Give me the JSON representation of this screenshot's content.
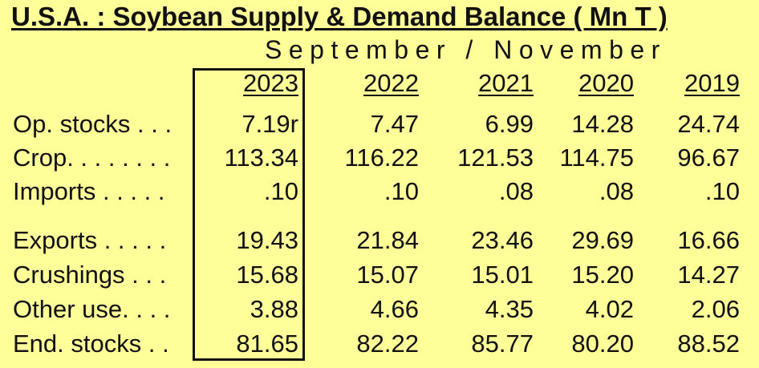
{
  "chart_data": {
    "type": "table",
    "title": "U.S.A. :  Soybean Supply & Demand Balance  ( Mn T )",
    "subtitle": "September / November",
    "columns": [
      "2023",
      "2022",
      "2021",
      "2020",
      "2019"
    ],
    "rows": [
      {
        "label": "Op. stocks . . .",
        "values": [
          "7.19r",
          "7.47",
          "6.99",
          "14.28",
          "24.74"
        ]
      },
      {
        "label": "Crop. . . . . . . .",
        "values": [
          "113.34",
          "116.22",
          "121.53",
          "114.75",
          "96.67"
        ]
      },
      {
        "label": "Imports  . . . . .",
        "values": [
          ".10",
          ".10",
          ".08",
          ".08",
          ".10"
        ]
      },
      {
        "label": "Exports  . . . . .",
        "values": [
          "19.43",
          "21.84",
          "23.46",
          "29.69",
          "16.66"
        ]
      },
      {
        "label": "Crushings  . . .",
        "values": [
          "15.68",
          "15.07",
          "15.01",
          "15.20",
          "14.27"
        ]
      },
      {
        "label": "Other use. . . .",
        "values": [
          "3.88",
          "4.66",
          "4.35",
          "4.02",
          "2.06"
        ]
      },
      {
        "label": "End. stocks  . .",
        "values": [
          "81.65",
          "82.22",
          "85.77",
          "80.20",
          "88.52"
        ]
      }
    ],
    "highlighted_column": "2023"
  }
}
